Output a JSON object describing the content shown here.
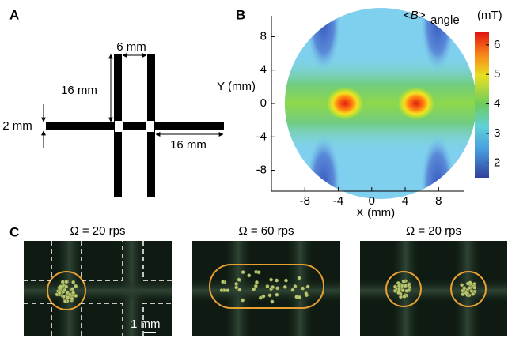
{
  "panel_labels": [
    "A",
    "B",
    "C"
  ],
  "panel_a": {
    "dimension_labels": [
      "6 mm",
      "16 mm",
      "2 mm",
      "16 mm"
    ]
  },
  "chart_data": {
    "type": "heatmap",
    "xlabel": "X (mm)",
    "ylabel": "Y (mm)",
    "xlim": [
      -12,
      11
    ],
    "ylim": [
      -10.5,
      10.5
    ],
    "xticks": [
      -8,
      -4,
      0,
      4,
      8
    ],
    "yticks": [
      -8,
      -4,
      0,
      4,
      8
    ],
    "colorbar": {
      "symbol": "<B>",
      "subscript": "angle",
      "unit": "(mT)",
      "clim": [
        1.5,
        6.45
      ],
      "ticks": [
        2,
        3,
        4,
        5,
        6
      ]
    }
  },
  "panel_c": {
    "titles": [
      "Ω = 20 rps",
      "Ω = 60 rps",
      "Ω = 20 rps"
    ],
    "scale_bar": "1 mm"
  }
}
